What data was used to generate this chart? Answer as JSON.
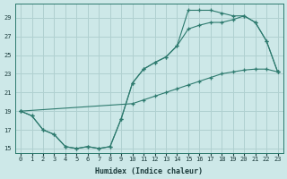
{
  "xlabel": "Humidex (Indice chaleur)",
  "bg_color": "#cde8e8",
  "grid_color": "#b0d0d0",
  "line_color": "#2d7a6e",
  "xlim": [
    -0.5,
    23.5
  ],
  "ylim": [
    14.5,
    30.5
  ],
  "xticks": [
    0,
    1,
    2,
    3,
    4,
    5,
    6,
    7,
    8,
    9,
    10,
    11,
    12,
    13,
    14,
    15,
    16,
    17,
    18,
    19,
    20,
    21,
    22,
    23
  ],
  "yticks": [
    15,
    17,
    19,
    21,
    23,
    25,
    27,
    29
  ],
  "line1_x": [
    0,
    1,
    2,
    3,
    4,
    5,
    6,
    7,
    8,
    9,
    10,
    11,
    12,
    13,
    14,
    15,
    16,
    17,
    18,
    19,
    20,
    21,
    22,
    23
  ],
  "line1_y": [
    19,
    18.5,
    17,
    16.5,
    15.2,
    15.0,
    15.2,
    15.0,
    15.2,
    18.2,
    22,
    23.5,
    24.2,
    24.8,
    26,
    27.8,
    28.2,
    28.5,
    28.5,
    28.8,
    29.2,
    28.5,
    26.5,
    23.2
  ],
  "line2_x": [
    0,
    1,
    2,
    3,
    4,
    5,
    6,
    7,
    8,
    9,
    10,
    11,
    12,
    13,
    14,
    15,
    16,
    17,
    18,
    19,
    20,
    21,
    22,
    23
  ],
  "line2_y": [
    19,
    18.5,
    17,
    16.5,
    15.2,
    15.0,
    15.2,
    15.0,
    15.2,
    18.2,
    22,
    23.5,
    24.2,
    24.8,
    26,
    29.8,
    29.8,
    29.8,
    29.5,
    29.2,
    29.2,
    28.5,
    26.5,
    23.2
  ],
  "line3_x": [
    0,
    10,
    11,
    12,
    13,
    14,
    15,
    16,
    17,
    18,
    19,
    20,
    21,
    22,
    23
  ],
  "line3_y": [
    19,
    19.8,
    20.2,
    20.6,
    21.0,
    21.4,
    21.8,
    22.2,
    22.6,
    23.0,
    23.2,
    23.4,
    23.5,
    23.5,
    23.2
  ]
}
